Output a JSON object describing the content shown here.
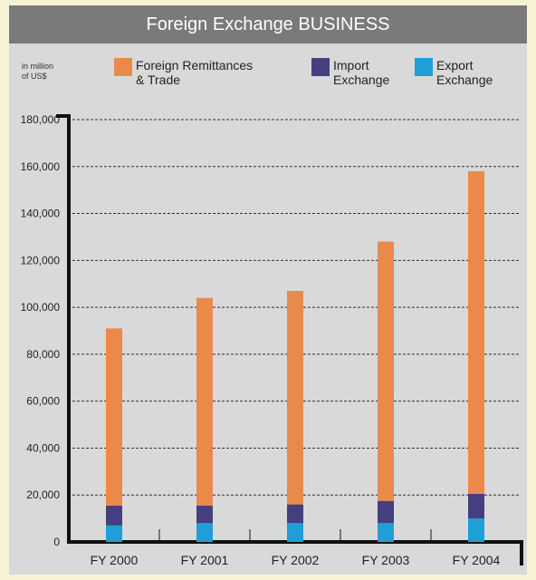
{
  "chart_data": {
    "type": "bar",
    "stacked": true,
    "title": "Foreign Exchange BUSINESS",
    "ylabel": "in million of US$",
    "categories": [
      "FY 2000",
      "FY 2001",
      "FY 2002",
      "FY 2003",
      "FY 2004"
    ],
    "series": [
      {
        "name": "Export Exchange",
        "color": "#1f9fd6",
        "values": [
          7000,
          8000,
          8000,
          8000,
          10000
        ]
      },
      {
        "name": "Import Exchange",
        "color": "#453f7f",
        "values": [
          8500,
          7500,
          8000,
          9500,
          10500
        ]
      },
      {
        "name": "Foreign Remittances & Trade",
        "color": "#e98a4b",
        "values": [
          75500,
          88500,
          91000,
          110500,
          137500
        ]
      }
    ],
    "legend": [
      {
        "line1": "Foreign Remittances",
        "line2": "& Trade",
        "color": "#e98a4b"
      },
      {
        "line1": "Import",
        "line2": "Exchange",
        "color": "#453f7f"
      },
      {
        "line1": "Export",
        "line2": "Exchange",
        "color": "#1f9fd6"
      }
    ],
    "unit_line1": "in million",
    "unit_line2": "of US$",
    "yticks": [
      "0",
      "20,000",
      "40,000",
      "60,000",
      "80,000",
      "100,000",
      "120,000",
      "140,000",
      "160,000",
      "180,000"
    ],
    "ylim": [
      0,
      180000
    ],
    "grid": true,
    "legend_placement": "top"
  }
}
